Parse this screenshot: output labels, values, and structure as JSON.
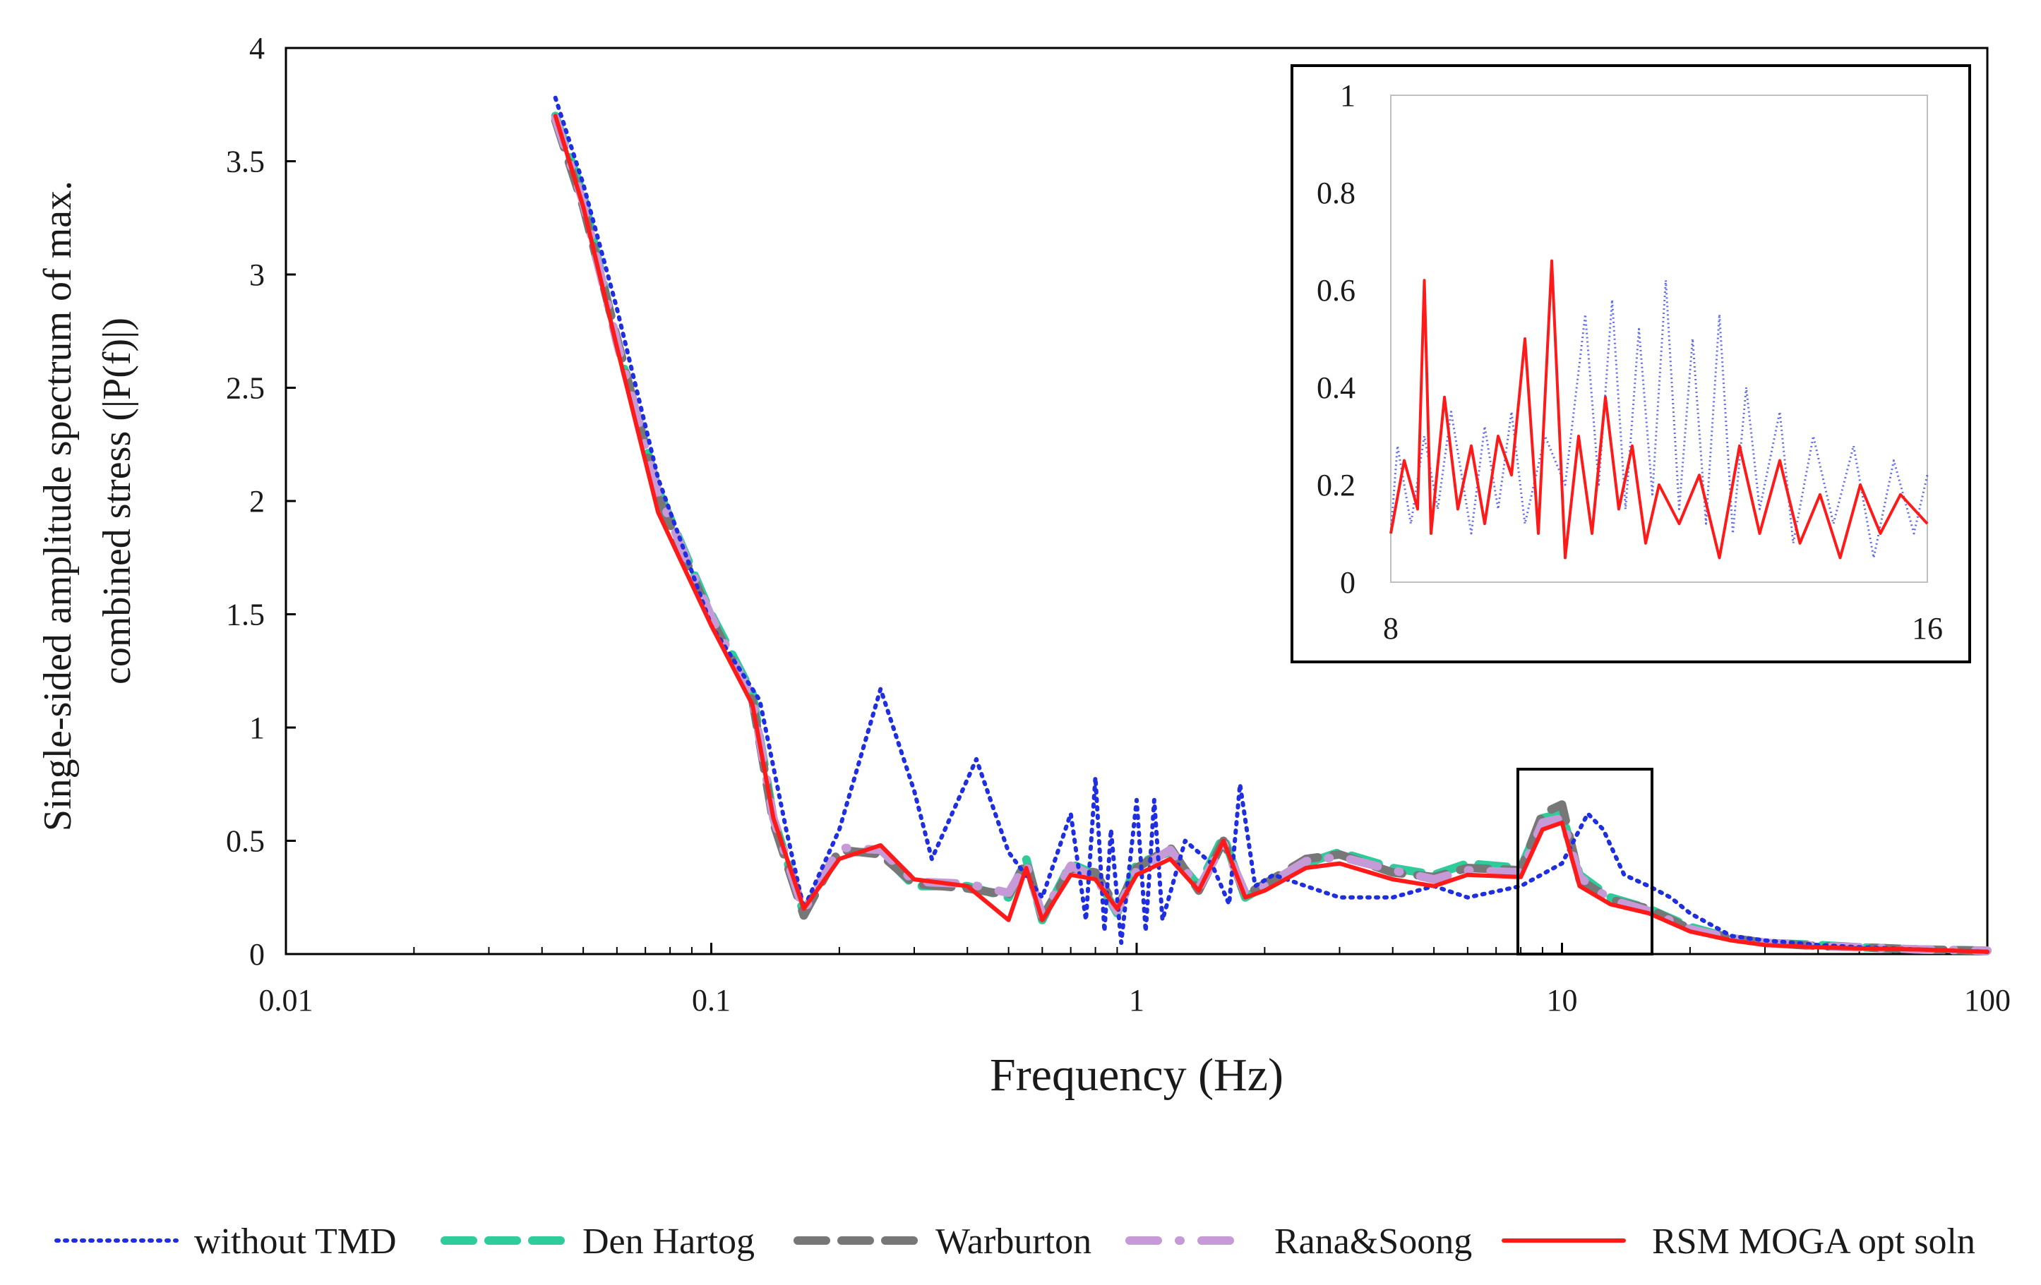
{
  "chart_data": {
    "type": "line",
    "xscale": "log",
    "xlabel": "Frequency (Hz)",
    "ylabel_lines": [
      "Single-sided  amplitude spectrum of max.",
      "combined stress (|P(f)|)"
    ],
    "xlim": [
      0.01,
      100
    ],
    "ylim": [
      0,
      4
    ],
    "x_ticks": [
      0.01,
      0.1,
      1,
      10,
      100
    ],
    "x_tick_labels": [
      "0.01",
      "0.1",
      "1",
      "10",
      "100"
    ],
    "y_ticks": [
      0,
      0.5,
      1,
      1.5,
      2,
      2.5,
      3,
      3.5,
      4
    ],
    "y_tick_labels": [
      "0",
      "0.5",
      "1",
      "1.5",
      "2",
      "2.5",
      "3",
      "3.5",
      "4"
    ],
    "legend_position": "bottom",
    "series": [
      {
        "name": "without TMD",
        "style": "dotted",
        "color": "#1f2fe0",
        "x": [
          0.043,
          0.05,
          0.06,
          0.075,
          0.1,
          0.13,
          0.15,
          0.165,
          0.2,
          0.25,
          0.3,
          0.33,
          0.42,
          0.5,
          0.6,
          0.7,
          0.76,
          0.8,
          0.84,
          0.87,
          0.92,
          1.0,
          1.05,
          1.1,
          1.15,
          1.3,
          1.5,
          1.65,
          1.75,
          1.9,
          2.1,
          2.5,
          3,
          4,
          5,
          6,
          8,
          10,
          11.5,
          12.5,
          14,
          16,
          18,
          20,
          25,
          30,
          40,
          50,
          70,
          100
        ],
        "y": [
          3.78,
          3.4,
          2.85,
          2.1,
          1.45,
          1.12,
          0.55,
          0.2,
          0.55,
          1.17,
          0.72,
          0.42,
          0.86,
          0.45,
          0.25,
          0.62,
          0.15,
          0.78,
          0.1,
          0.55,
          0.05,
          0.68,
          0.1,
          0.68,
          0.15,
          0.5,
          0.4,
          0.22,
          0.75,
          0.3,
          0.35,
          0.3,
          0.25,
          0.25,
          0.3,
          0.25,
          0.3,
          0.4,
          0.62,
          0.55,
          0.35,
          0.3,
          0.25,
          0.18,
          0.08,
          0.06,
          0.04,
          0.03,
          0.02,
          0.01
        ]
      },
      {
        "name": "Den Hartog",
        "style": "dashed",
        "color": "#2ecc9a",
        "x": [
          0.043,
          0.05,
          0.06,
          0.075,
          0.1,
          0.125,
          0.14,
          0.165,
          0.2,
          0.25,
          0.3,
          0.4,
          0.5,
          0.55,
          0.6,
          0.7,
          0.8,
          0.9,
          1.0,
          1.2,
          1.4,
          1.6,
          1.8,
          2.0,
          2.5,
          3,
          4,
          5,
          6,
          8,
          9,
          10,
          11,
          13,
          16,
          20,
          25,
          30,
          40,
          50,
          70,
          100
        ],
        "y": [
          3.7,
          3.35,
          2.7,
          2.05,
          1.5,
          1.15,
          0.6,
          0.18,
          0.45,
          0.45,
          0.3,
          0.3,
          0.25,
          0.42,
          0.15,
          0.4,
          0.35,
          0.18,
          0.4,
          0.45,
          0.3,
          0.52,
          0.25,
          0.3,
          0.4,
          0.45,
          0.38,
          0.35,
          0.4,
          0.38,
          0.6,
          0.62,
          0.35,
          0.25,
          0.2,
          0.12,
          0.07,
          0.05,
          0.04,
          0.03,
          0.02,
          0.015
        ]
      },
      {
        "name": "Warburton",
        "style": "dashed",
        "color": "#777777",
        "x": [
          0.043,
          0.05,
          0.06,
          0.075,
          0.1,
          0.125,
          0.14,
          0.165,
          0.2,
          0.25,
          0.3,
          0.4,
          0.5,
          0.55,
          0.6,
          0.7,
          0.8,
          0.9,
          1.0,
          1.2,
          1.4,
          1.6,
          1.8,
          2.0,
          2.5,
          3,
          4,
          5,
          6,
          8,
          9,
          10,
          11,
          13,
          16,
          20,
          25,
          30,
          40,
          50,
          70,
          100
        ],
        "y": [
          3.68,
          3.3,
          2.72,
          2.02,
          1.48,
          1.12,
          0.58,
          0.17,
          0.46,
          0.44,
          0.31,
          0.29,
          0.26,
          0.41,
          0.16,
          0.38,
          0.36,
          0.2,
          0.38,
          0.47,
          0.28,
          0.5,
          0.26,
          0.31,
          0.42,
          0.44,
          0.36,
          0.34,
          0.38,
          0.37,
          0.62,
          0.66,
          0.33,
          0.24,
          0.2,
          0.11,
          0.07,
          0.05,
          0.035,
          0.03,
          0.02,
          0.015
        ]
      },
      {
        "name": "Rana&Soong",
        "style": "dash-dot",
        "color": "#c69ad6",
        "x": [
          0.043,
          0.05,
          0.06,
          0.075,
          0.1,
          0.125,
          0.14,
          0.165,
          0.2,
          0.25,
          0.3,
          0.4,
          0.5,
          0.55,
          0.6,
          0.7,
          0.8,
          0.9,
          1.0,
          1.2,
          1.4,
          1.6,
          1.8,
          2.0,
          2.5,
          3,
          4,
          5,
          6,
          8,
          9,
          10,
          11,
          13,
          16,
          20,
          25,
          30,
          40,
          50,
          70,
          100
        ],
        "y": [
          3.69,
          3.32,
          2.7,
          2.04,
          1.49,
          1.13,
          0.6,
          0.19,
          0.47,
          0.46,
          0.32,
          0.31,
          0.27,
          0.4,
          0.17,
          0.39,
          0.34,
          0.19,
          0.37,
          0.46,
          0.29,
          0.49,
          0.27,
          0.3,
          0.41,
          0.43,
          0.37,
          0.33,
          0.37,
          0.36,
          0.58,
          0.6,
          0.34,
          0.24,
          0.19,
          0.11,
          0.07,
          0.05,
          0.035,
          0.03,
          0.02,
          0.015
        ]
      },
      {
        "name": "RSM MOGA opt soln",
        "style": "solid",
        "color": "#ff1a1a",
        "x": [
          0.043,
          0.05,
          0.06,
          0.075,
          0.1,
          0.125,
          0.14,
          0.165,
          0.2,
          0.25,
          0.3,
          0.4,
          0.5,
          0.55,
          0.6,
          0.7,
          0.8,
          0.9,
          1.0,
          1.2,
          1.4,
          1.6,
          1.8,
          2.0,
          2.5,
          3,
          4,
          5,
          6,
          8,
          9,
          10,
          11,
          13,
          16,
          20,
          25,
          30,
          40,
          50,
          70,
          100
        ],
        "y": [
          3.7,
          3.3,
          2.68,
          1.95,
          1.45,
          1.1,
          0.6,
          0.2,
          0.42,
          0.48,
          0.33,
          0.3,
          0.15,
          0.38,
          0.15,
          0.35,
          0.33,
          0.2,
          0.35,
          0.42,
          0.28,
          0.5,
          0.25,
          0.28,
          0.38,
          0.4,
          0.33,
          0.3,
          0.35,
          0.34,
          0.55,
          0.58,
          0.3,
          0.22,
          0.18,
          0.1,
          0.06,
          0.04,
          0.03,
          0.025,
          0.02,
          0.01
        ]
      }
    ],
    "inset": {
      "xlim": [
        8,
        16
      ],
      "ylim": [
        0,
        1
      ],
      "x_tick_labels": [
        "8",
        "16"
      ],
      "y_tick_labels": [
        "0",
        "0.2",
        "0.4",
        "0.6",
        "0.8",
        "1"
      ],
      "series": [
        {
          "name": "without TMD",
          "x": [
            8.0,
            8.1,
            8.3,
            8.5,
            8.7,
            8.9,
            9.2,
            9.4,
            9.6,
            9.8,
            10.0,
            10.3,
            10.6,
            10.9,
            11.1,
            11.3,
            11.5,
            11.7,
            11.9,
            12.1,
            12.3,
            12.5,
            12.7,
            12.9,
            13.1,
            13.3,
            13.5,
            13.8,
            14.0,
            14.3,
            14.6,
            14.9,
            15.2,
            15.5,
            15.8,
            16.0
          ],
          "y": [
            0.1,
            0.28,
            0.12,
            0.3,
            0.15,
            0.35,
            0.1,
            0.32,
            0.15,
            0.35,
            0.12,
            0.3,
            0.2,
            0.55,
            0.2,
            0.58,
            0.15,
            0.52,
            0.18,
            0.62,
            0.15,
            0.5,
            0.12,
            0.55,
            0.1,
            0.4,
            0.15,
            0.35,
            0.08,
            0.3,
            0.12,
            0.28,
            0.05,
            0.25,
            0.1,
            0.22
          ]
        },
        {
          "name": "RSM MOGA opt soln",
          "x": [
            8.0,
            8.2,
            8.4,
            8.5,
            8.6,
            8.8,
            9.0,
            9.2,
            9.4,
            9.6,
            9.8,
            10.0,
            10.2,
            10.4,
            10.6,
            10.8,
            11.0,
            11.2,
            11.4,
            11.6,
            11.8,
            12.0,
            12.3,
            12.6,
            12.9,
            13.2,
            13.5,
            13.8,
            14.1,
            14.4,
            14.7,
            15.0,
            15.3,
            15.6,
            16.0
          ],
          "y": [
            0.1,
            0.25,
            0.15,
            0.62,
            0.1,
            0.38,
            0.15,
            0.28,
            0.12,
            0.3,
            0.22,
            0.5,
            0.1,
            0.66,
            0.05,
            0.3,
            0.1,
            0.38,
            0.15,
            0.28,
            0.08,
            0.2,
            0.12,
            0.22,
            0.05,
            0.28,
            0.1,
            0.25,
            0.08,
            0.18,
            0.05,
            0.2,
            0.1,
            0.18,
            0.12
          ]
        }
      ]
    }
  }
}
